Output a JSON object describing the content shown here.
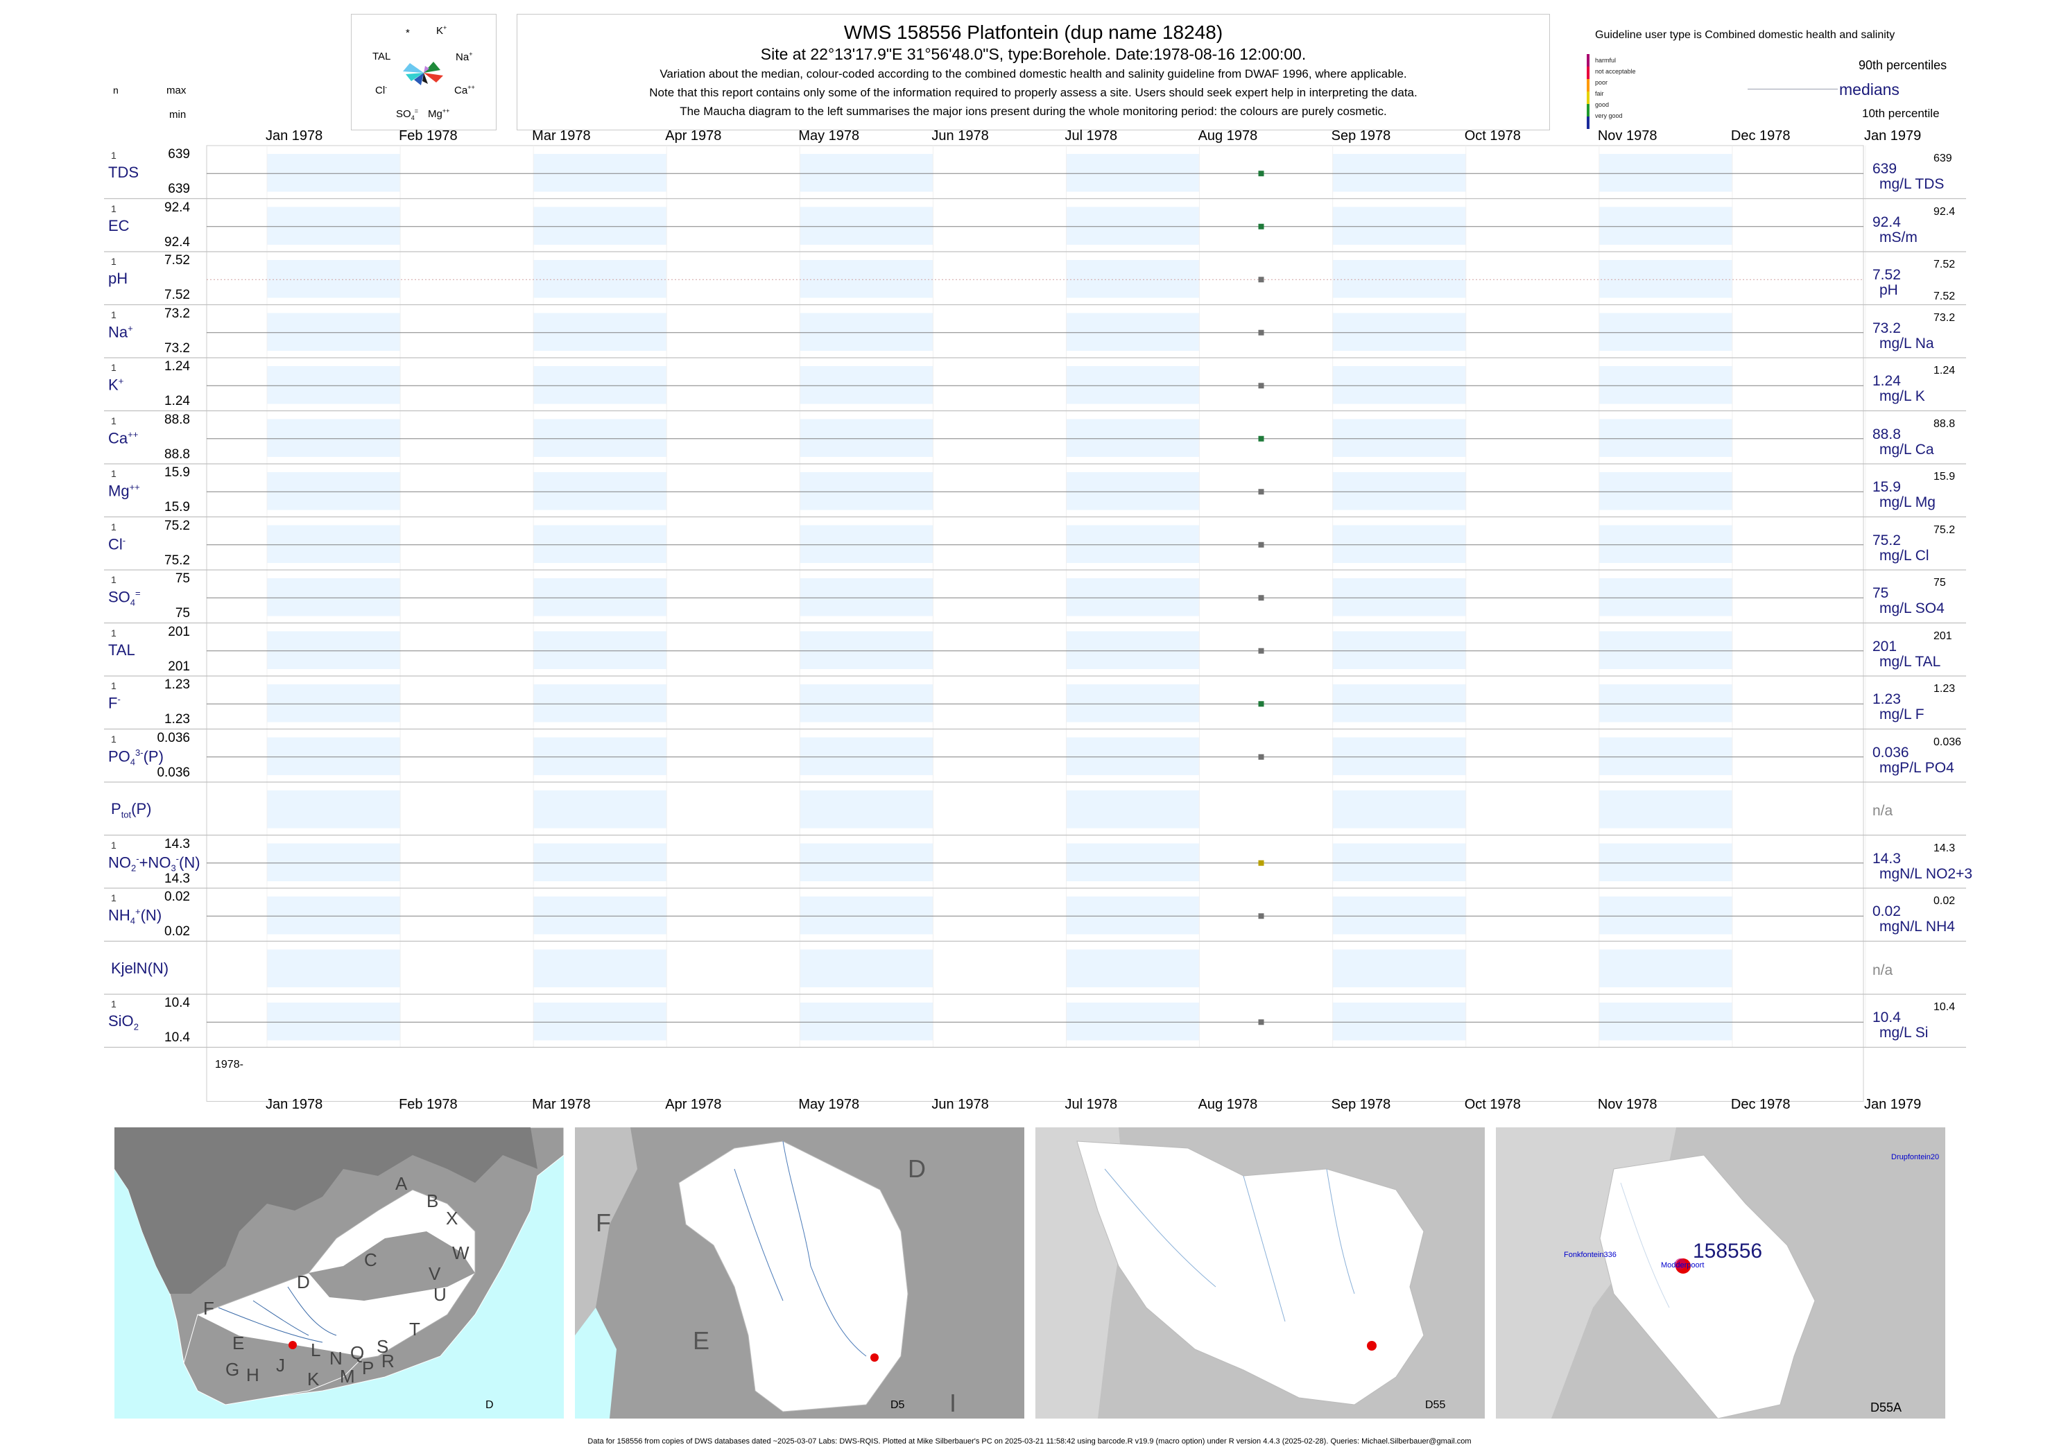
{
  "header": {
    "title": "WMS 158556  Platfontein (dup name 18248)",
    "subtitle": "Site at 22°13'17.9\"E 31°56'48.0\"S, type:Borehole. Date:1978-08-16 12:00:00.",
    "note1": "Variation about the median,  colour-coded according to the combined domestic health and salinity guideline from DWAF 1996, where applicable.",
    "note2": "Note that this report contains only some of the information required to properly assess a site. Users should seek expert help in interpreting the data.",
    "note3": "The Maucha diagram to the left summarises the major ions present during the whole monitoring period: the colours are purely cosmetic."
  },
  "maucha": {
    "labels": [
      "*",
      "K",
      "TAL",
      "Na",
      "Cl",
      "Ca",
      "SO",
      "Mg"
    ],
    "superscripts": {
      "K": "+",
      "Na": "+",
      "Cl": "-",
      "Ca": "++",
      "SO": "=",
      "SO_sub": "4",
      "Mg": "++"
    }
  },
  "left_header": {
    "n": "n",
    "max": "max",
    "min": "min"
  },
  "guideline": {
    "user_type": "Guideline user type is Combined domestic health and salinity",
    "levels": [
      {
        "label": "harmful",
        "color": "#aa006e"
      },
      {
        "label": "not acceptable",
        "color": "#e8003c"
      },
      {
        "label": "poor",
        "color": "#ff9a00"
      },
      {
        "label": "fair",
        "color": "#e6d200"
      },
      {
        "label": "good",
        "color": "#1f9a2e"
      },
      {
        "label": "very good",
        "color": "#1a2a9a"
      }
    ],
    "p90": "90th percentiles",
    "medians": "medians",
    "p10": "10th percentile"
  },
  "months": [
    "Jan 1978",
    "Feb 1978",
    "Mar 1978",
    "Apr 1978",
    "May 1978",
    "Jun 1978",
    "Jul 1978",
    "Aug 1978",
    "Sep 1978",
    "Oct 1978",
    "Nov 1978",
    "Dec 1978",
    "Jan 1979"
  ],
  "year_label": "1978-",
  "chart_data": {
    "type": "scatter",
    "x_range": [
      "1978-01-01",
      "1979-01-01"
    ],
    "sample_date": "1978-08-16",
    "panels": [
      {
        "label": "TDS",
        "sup": "",
        "sub": "",
        "n": "1",
        "max": "639",
        "min": "639",
        "value": 639,
        "median_label": "639",
        "unit": "mg/L TDS",
        "p90": "639",
        "p10": "",
        "color": "#1f7a3a"
      },
      {
        "label": "EC",
        "sup": "",
        "sub": "",
        "n": "1",
        "max": "92.4",
        "min": "92.4",
        "value": 92.4,
        "median_label": "92.4",
        "unit": "mS/m",
        "p90": "92.4",
        "p10": "",
        "color": "#1f7a3a"
      },
      {
        "label": "pH",
        "sup": "",
        "sub": "",
        "n": "1",
        "max": "7.52",
        "min": "7.52",
        "value": 7.52,
        "median_label": "7.52",
        "unit": "pH",
        "p90": "7.52",
        "p10": "7.52",
        "color": "#707070"
      },
      {
        "label": "Na",
        "sup": "+",
        "sub": "",
        "n": "1",
        "max": "73.2",
        "min": "73.2",
        "value": 73.2,
        "median_label": "73.2",
        "unit": "mg/L Na",
        "p90": "73.2",
        "p10": "",
        "color": "#707070"
      },
      {
        "label": "K",
        "sup": "+",
        "sub": "",
        "n": "1",
        "max": "1.24",
        "min": "1.24",
        "value": 1.24,
        "median_label": "1.24",
        "unit": "mg/L K",
        "p90": "1.24",
        "p10": "",
        "color": "#707070"
      },
      {
        "label": "Ca",
        "sup": "++",
        "sub": "",
        "n": "1",
        "max": "88.8",
        "min": "88.8",
        "value": 88.8,
        "median_label": "88.8",
        "unit": "mg/L Ca",
        "p90": "88.8",
        "p10": "",
        "color": "#1f7a3a"
      },
      {
        "label": "Mg",
        "sup": "++",
        "sub": "",
        "n": "1",
        "max": "15.9",
        "min": "15.9",
        "value": 15.9,
        "median_label": "15.9",
        "unit": "mg/L Mg",
        "p90": "15.9",
        "p10": "",
        "color": "#707070"
      },
      {
        "label": "Cl",
        "sup": "-",
        "sub": "",
        "n": "1",
        "max": "75.2",
        "min": "75.2",
        "value": 75.2,
        "median_label": "75.2",
        "unit": "mg/L Cl",
        "p90": "75.2",
        "p10": "",
        "color": "#707070"
      },
      {
        "label": "SO",
        "sup": "=",
        "sub": "4",
        "n": "1",
        "max": "75",
        "min": "75",
        "value": 75,
        "median_label": "75",
        "unit": "mg/L SO4",
        "p90": "75",
        "p10": "",
        "color": "#707070"
      },
      {
        "label": "TAL",
        "sup": "",
        "sub": "",
        "n": "1",
        "max": "201",
        "min": "201",
        "value": 201,
        "median_label": "201",
        "unit": "mg/L TAL",
        "p90": "201",
        "p10": "",
        "color": "#707070"
      },
      {
        "label": "F",
        "sup": "-",
        "sub": "",
        "n": "1",
        "max": "1.23",
        "min": "1.23",
        "value": 1.23,
        "median_label": "1.23",
        "unit": "mg/L F",
        "p90": "1.23",
        "p10": "",
        "color": "#1f7a3a"
      },
      {
        "label": "PO",
        "sup": "3-",
        "sub": "4",
        "suffix": "(P)",
        "n": "1",
        "max": "0.036",
        "min": "0.036",
        "value": 0.036,
        "median_label": "0.036",
        "unit": "mgP/L PO4",
        "p90": "0.036",
        "p10": "",
        "color": "#707070"
      },
      {
        "label": "P",
        "sup": "",
        "sub": "tot",
        "suffix": "(P)",
        "n": "",
        "max": "",
        "min": "",
        "value": null,
        "median_label": "n/a",
        "unit": "",
        "p90": "",
        "p10": "",
        "color": "#707070"
      },
      {
        "label": "NO",
        "sup": "-",
        "sub": "2",
        "suffix": "+NO",
        "suffix_sup": "-",
        "suffix_sub": "3",
        "suffix2": "(N)",
        "n": "1",
        "max": "14.3",
        "min": "14.3",
        "value": 14.3,
        "median_label": "14.3",
        "unit": "mgN/L NO2+3",
        "p90": "14.3",
        "p10": "",
        "color": "#b8a000"
      },
      {
        "label": "NH",
        "sup": "+",
        "sub": "4",
        "suffix": "(N)",
        "n": "1",
        "max": "0.02",
        "min": "0.02",
        "value": 0.02,
        "median_label": "0.02",
        "unit": "mgN/L NH4",
        "p90": "0.02",
        "p10": "",
        "color": "#707070"
      },
      {
        "label": "KjelN(N)",
        "sup": "",
        "sub": "",
        "n": "",
        "max": "",
        "min": "",
        "value": null,
        "median_label": "n/a",
        "unit": "",
        "p90": "",
        "p10": "",
        "color": "#707070"
      },
      {
        "label": "SiO",
        "sup": "",
        "sub": "2",
        "n": "1",
        "max": "10.4",
        "min": "10.4",
        "value": 10.4,
        "median_label": "10.4",
        "unit": "mg/L Si",
        "p90": "10.4",
        "p10": "",
        "color": "#707070"
      }
    ]
  },
  "maps": {
    "m1": {
      "letters": [
        "A",
        "B",
        "X",
        "C",
        "W",
        "D",
        "V",
        "U",
        "T",
        "F",
        "E",
        "L",
        "N",
        "Q",
        "S",
        "G",
        "H",
        "J",
        "K",
        "M",
        "P",
        "R"
      ],
      "corner": "D"
    },
    "m2": {
      "letters": [
        "D",
        "F",
        "E",
        "I"
      ],
      "corner": "D5"
    },
    "m3": {
      "corner": "D55"
    },
    "m4": {
      "site": "158556",
      "corner": "D55A",
      "towns": [
        "Fonkfontein336",
        "Modderpoort",
        "Drupfontein20"
      ]
    }
  },
  "footer": "Data for 158556 from copies of DWS databases dated ~2025-03-07 Labs: DWS-RQIS. Plotted at Mike Silberbauer's PC on 2025-03-21 11:58:42 using barcode.R v19.9 (macro option) under R version 4.4.3 (2025-02-28). Queries: Michael.Silberbauer@gmail.com"
}
